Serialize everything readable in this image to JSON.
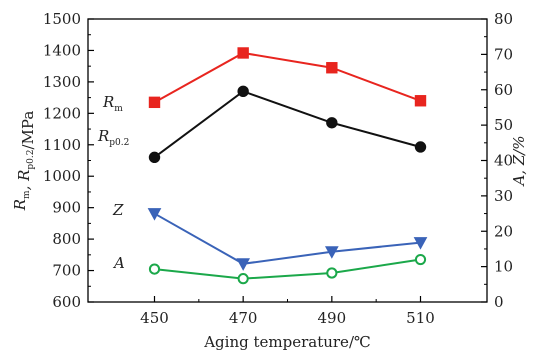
{
  "chart_data": {
    "type": "line",
    "xlabel": "Aging temperature/℃",
    "ylabel_left": {
      "parts": [
        {
          "text": "R",
          "sub": "",
          "italic": true
        },
        {
          "text": "",
          "sub": "m",
          "italic": false
        },
        {
          "text": ", R",
          "sub": "",
          "italic": true
        },
        {
          "text": "",
          "sub": "p0.2",
          "italic": false
        },
        {
          "text": "/MPa",
          "sub": "",
          "italic": false
        }
      ]
    },
    "ylabel_right": "A, Z/%",
    "x": [
      450,
      470,
      490,
      510
    ],
    "xlim": [
      435,
      525
    ],
    "y_left_lim": [
      600,
      1500
    ],
    "y_right_lim": [
      0,
      80
    ],
    "x_ticks": [
      450,
      470,
      490,
      510
    ],
    "y_left_ticks": [
      600,
      700,
      800,
      900,
      1000,
      1100,
      1200,
      1300,
      1400,
      1500
    ],
    "y_right_ticks": [
      0,
      10,
      20,
      30,
      40,
      50,
      60,
      70,
      80
    ],
    "grid": false,
    "series": [
      {
        "name": "Rm",
        "label_main": "R",
        "label_sub": "m",
        "axis": "left",
        "values": [
          1235,
          1392,
          1345,
          1240
        ],
        "color": "#e8251f",
        "marker": "square-filled"
      },
      {
        "name": "Rp0.2",
        "label_main": "R",
        "label_sub": "p0.2",
        "axis": "left",
        "values": [
          1060,
          1270,
          1170,
          1093
        ],
        "color": "#111111",
        "marker": "circle-filled"
      },
      {
        "name": "Z",
        "label_main": "Z",
        "label_sub": "",
        "axis": "right",
        "values": [
          25,
          10.8,
          14.2,
          16.8
        ],
        "color": "#3a63b8",
        "marker": "triangle-down-filled"
      },
      {
        "name": "A",
        "label_main": "A",
        "label_sub": "",
        "axis": "right",
        "values": [
          9.3,
          6.6,
          8.2,
          12.0
        ],
        "color": "#1ba84a",
        "marker": "circle-open"
      }
    ]
  }
}
